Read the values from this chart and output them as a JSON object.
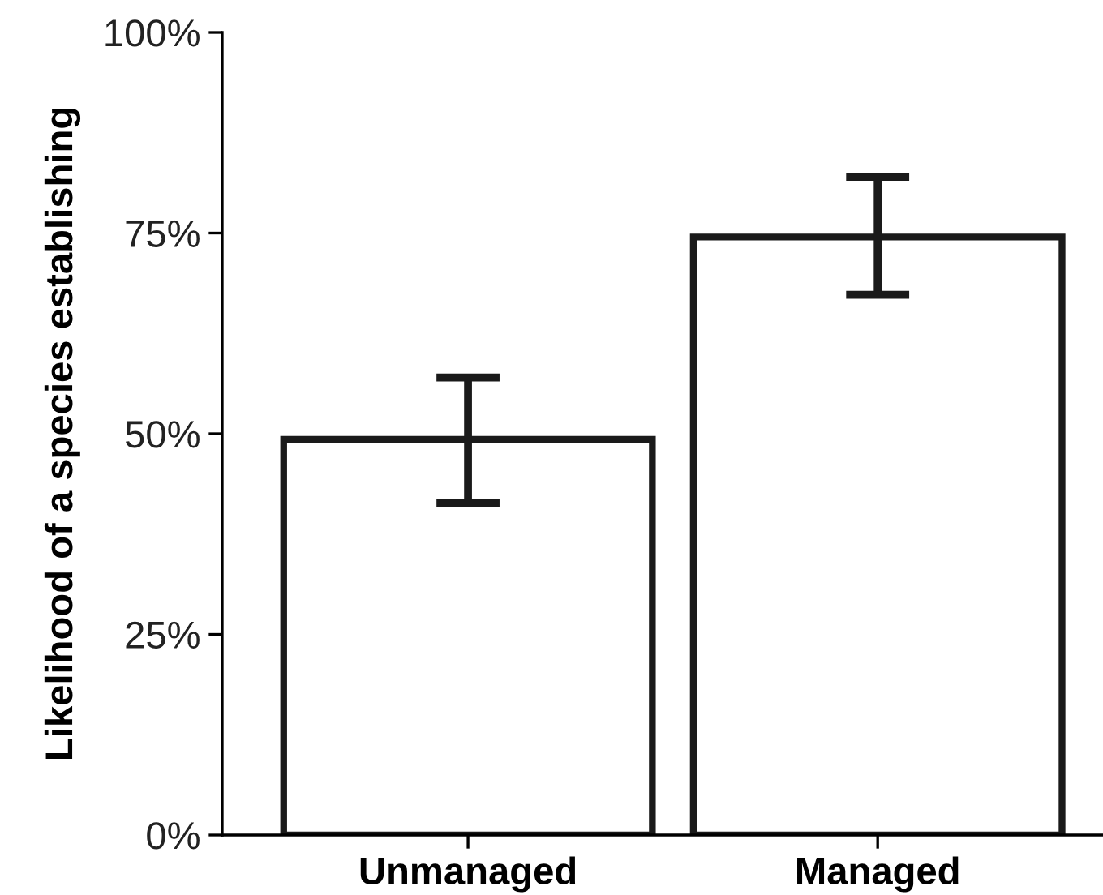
{
  "chart_data": {
    "type": "bar",
    "ylabel": "Likelihood of a species establishing",
    "categories": [
      "Unmanaged",
      "Managed"
    ],
    "values": [
      49.3,
      74.5
    ],
    "errors": [
      [
        41.4,
        57.0
      ],
      [
        67.3,
        82.0
      ]
    ],
    "color": "#ffffff",
    "ylim": [
      0,
      100
    ],
    "yticks": [
      {
        "value": 0,
        "label": "0%"
      },
      {
        "value": 25,
        "label": "25%"
      },
      {
        "value": 50,
        "label": "50%"
      },
      {
        "value": 75,
        "label": "75%"
      },
      {
        "value": 100,
        "label": "100%"
      }
    ],
    "grid": false
  }
}
